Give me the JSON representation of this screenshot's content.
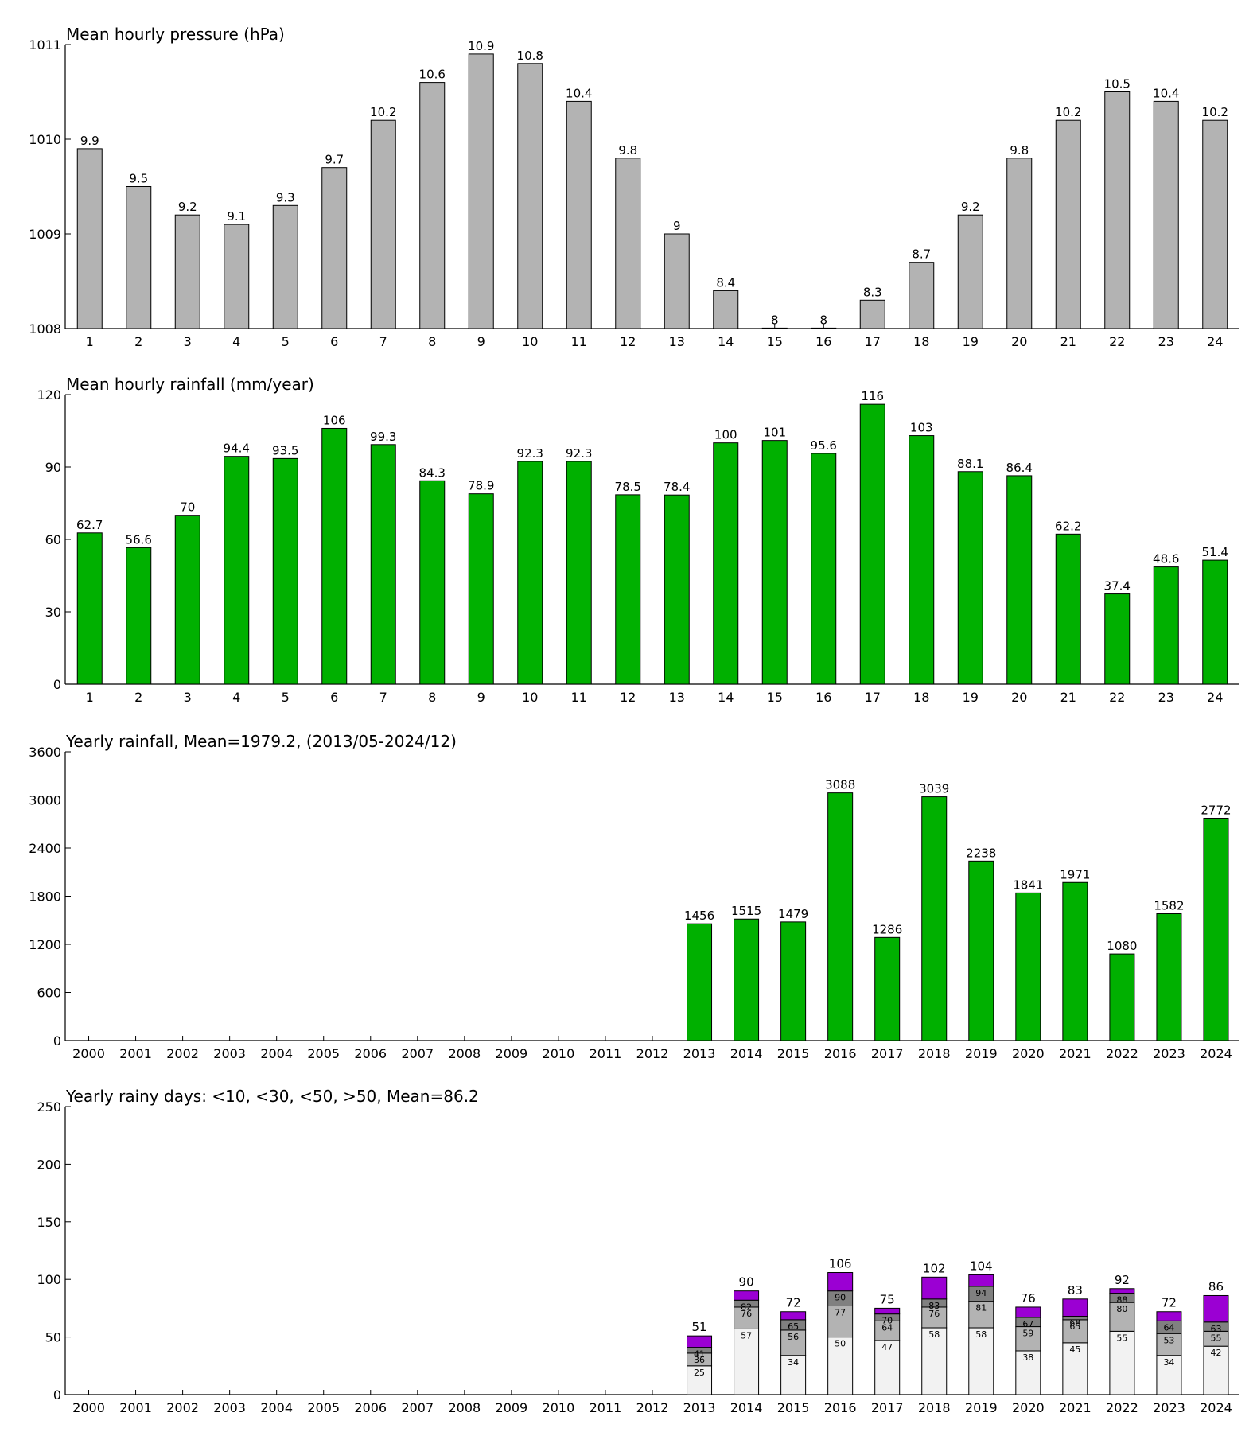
{
  "charts": [
    {
      "type": "bar",
      "title": "Mean hourly pressure (hPa)",
      "categories": [
        "1",
        "2",
        "3",
        "4",
        "5",
        "6",
        "7",
        "8",
        "9",
        "10",
        "11",
        "12",
        "13",
        "14",
        "15",
        "16",
        "17",
        "18",
        "19",
        "20",
        "21",
        "22",
        "23",
        "24"
      ],
      "values": [
        1009.9,
        1009.5,
        1009.2,
        1009.1,
        1009.3,
        1009.7,
        1010.2,
        1010.6,
        1010.9,
        1010.8,
        1010.4,
        1009.8,
        1009.0,
        1008.4,
        1008.0,
        1008.0,
        1008.3,
        1008.7,
        1009.2,
        1009.8,
        1010.2,
        1010.5,
        1010.4,
        1010.2
      ],
      "labels": [
        "9.9",
        "9.5",
        "9.2",
        "9.1",
        "9.3",
        "9.7",
        "10.2",
        "10.6",
        "10.9",
        "10.8",
        "10.4",
        "9.8",
        "9",
        "8.4",
        "8",
        "8",
        "8.3",
        "8.7",
        "9.2",
        "9.8",
        "10.2",
        "10.5",
        "10.4",
        "10.2"
      ],
      "ylim": [
        1008,
        1011
      ],
      "yticks": [
        "1008",
        "1009",
        "1010",
        "1011"
      ],
      "color": "#b3b3b3"
    },
    {
      "type": "bar",
      "title": "Mean hourly rainfall (mm/year)",
      "categories": [
        "1",
        "2",
        "3",
        "4",
        "5",
        "6",
        "7",
        "8",
        "9",
        "10",
        "11",
        "12",
        "13",
        "14",
        "15",
        "16",
        "17",
        "18",
        "19",
        "20",
        "21",
        "22",
        "23",
        "24"
      ],
      "values": [
        62.7,
        56.6,
        70,
        94.4,
        93.5,
        106,
        99.3,
        84.3,
        78.9,
        92.3,
        92.3,
        78.5,
        78.4,
        100,
        101,
        95.6,
        116,
        103,
        88.1,
        86.4,
        62.2,
        37.4,
        48.6,
        51.4
      ],
      "labels": [
        "62.7",
        "56.6",
        "70",
        "94.4",
        "93.5",
        "106",
        "99.3",
        "84.3",
        "78.9",
        "92.3",
        "92.3",
        "78.5",
        "78.4",
        "100",
        "101",
        "95.6",
        "116",
        "103",
        "88.1",
        "86.4",
        "62.2",
        "37.4",
        "48.6",
        "51.4"
      ],
      "ylim": [
        0,
        120
      ],
      "yticks": [
        "0",
        "30",
        "60",
        "90",
        "120"
      ],
      "color": "#00b000"
    },
    {
      "type": "bar",
      "title": "Yearly rainfall, Mean=1979.2, (2013/05-2024/12)",
      "categories": [
        "2000",
        "2001",
        "2002",
        "2003",
        "2004",
        "2005",
        "2006",
        "2007",
        "2008",
        "2009",
        "2010",
        "2011",
        "2012",
        "2013",
        "2014",
        "2015",
        "2016",
        "2017",
        "2018",
        "2019",
        "2020",
        "2021",
        "2022",
        "2023",
        "2024"
      ],
      "values": [
        null,
        null,
        null,
        null,
        null,
        null,
        null,
        null,
        null,
        null,
        null,
        null,
        null,
        1456,
        1515,
        1479,
        3088,
        1286,
        3039,
        2238,
        1841,
        1971,
        1080,
        1582,
        2772
      ],
      "labels": [
        "",
        "",
        "",
        "",
        "",
        "",
        "",
        "",
        "",
        "",
        "",
        "",
        "",
        "1456",
        "1515",
        "1479",
        "3088",
        "1286",
        "3039",
        "2238",
        "1841",
        "1971",
        "1080",
        "1582",
        "2772"
      ],
      "ylim": [
        0,
        3600
      ],
      "yticks": [
        "0",
        "600",
        "1200",
        "1800",
        "2400",
        "3000",
        "3600"
      ],
      "color": "#00b000"
    },
    {
      "type": "stacked-bar",
      "title": "Yearly rainy days: <10, <30, <50, >50, Mean=86.2",
      "categories": [
        "2000",
        "2001",
        "2002",
        "2003",
        "2004",
        "2005",
        "2006",
        "2007",
        "2008",
        "2009",
        "2010",
        "2011",
        "2012",
        "2013",
        "2014",
        "2015",
        "2016",
        "2017",
        "2018",
        "2019",
        "2020",
        "2021",
        "2022",
        "2023",
        "2024"
      ],
      "cumulative": [
        null,
        null,
        null,
        null,
        null,
        null,
        null,
        null,
        null,
        null,
        null,
        null,
        null,
        [
          25,
          36,
          41,
          51
        ],
        [
          57,
          76,
          82,
          90
        ],
        [
          34,
          56,
          65,
          72
        ],
        [
          50,
          77,
          90,
          106
        ],
        [
          47,
          64,
          70,
          75
        ],
        [
          58,
          76,
          83,
          102
        ],
        [
          58,
          81,
          94,
          104
        ],
        [
          38,
          59,
          67,
          76
        ],
        [
          45,
          65,
          68,
          83
        ],
        [
          55,
          80,
          88,
          92
        ],
        [
          34,
          53,
          64,
          72
        ],
        [
          42,
          55,
          63,
          86
        ]
      ],
      "segment_labels": [
        null,
        null,
        null,
        null,
        null,
        null,
        null,
        null,
        null,
        null,
        null,
        null,
        null,
        [
          "25",
          "36",
          "41"
        ],
        [
          "57",
          "76",
          "82"
        ],
        [
          "34",
          "56",
          "65"
        ],
        [
          "50",
          "77",
          "90"
        ],
        [
          "47",
          "64",
          "70"
        ],
        [
          "58",
          "76",
          "83"
        ],
        [
          "58",
          "81",
          "94"
        ],
        [
          "38",
          "59",
          "67"
        ],
        [
          "45",
          "65",
          "68"
        ],
        [
          "55",
          "80",
          "88"
        ],
        [
          "34",
          "53",
          "64"
        ],
        [
          "42",
          "55",
          "63"
        ]
      ],
      "total_labels": [
        "",
        "",
        "",
        "",
        "",
        "",
        "",
        "",
        "",
        "",
        "",
        "",
        "",
        "51",
        "90",
        "72",
        "106",
        "75",
        "102",
        "104",
        "76",
        "83",
        "92",
        "72",
        "86"
      ],
      "ylim": [
        0,
        250
      ],
      "yticks": [
        "0",
        "50",
        "100",
        "150",
        "200",
        "250"
      ],
      "segment_colors": [
        "#f2f2f2",
        "#b3b3b3",
        "#808080",
        "#9b00d3"
      ]
    }
  ]
}
